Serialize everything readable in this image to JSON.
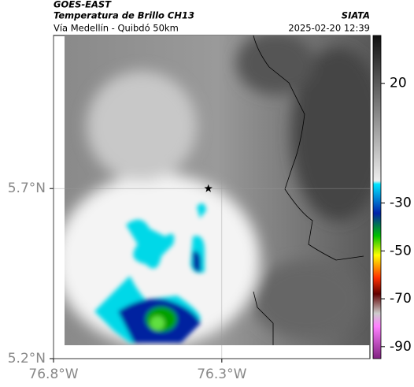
{
  "header": {
    "satellite": "GOES-EAST",
    "title": "Temperatura de Brillo CH13",
    "source": "SIATA",
    "route": "Vía Medellín - Quibdó 50km",
    "datetime": "2025-02-20 12:39"
  },
  "map": {
    "lonlim": [
      -76.8,
      -75.86
    ],
    "latlim": [
      5.2,
      6.15
    ],
    "lat_ticks": [
      {
        "value": 5.7,
        "label": "5.7°N"
      },
      {
        "value": 5.2,
        "label": "5.2°N"
      }
    ],
    "lon_ticks": [
      {
        "value": -76.8,
        "label": "76.8°W"
      },
      {
        "value": -76.3,
        "label": "76.3°W"
      }
    ],
    "marker": {
      "lon": -76.34,
      "lat": 5.7
    }
  },
  "colorbar": {
    "lim": [
      -95,
      40
    ],
    "ticks": [
      20,
      -30,
      -50,
      -70,
      -90
    ]
  }
}
